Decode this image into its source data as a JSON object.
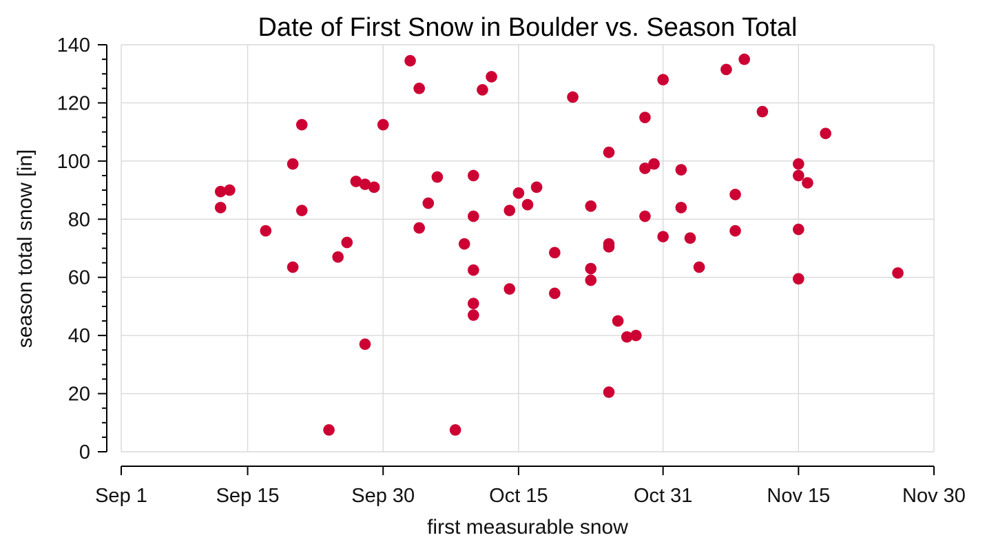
{
  "chart_data": {
    "type": "scatter",
    "title": "Date of First Snow in Boulder vs. Season Total",
    "xlabel": "first measurable snow",
    "ylabel": "season total snow [in]",
    "x_is_date": true,
    "xlim": [
      "Sep 1",
      "Nov 30"
    ],
    "ylim": [
      0,
      140
    ],
    "x_ticks": [
      {
        "value": "Sep 1",
        "label": "Sep 1"
      },
      {
        "value": "Sep 15",
        "label": "Sep 15"
      },
      {
        "value": "Sep 30",
        "label": "Sep 30"
      },
      {
        "value": "Oct 15",
        "label": "Oct 15"
      },
      {
        "value": "Oct 31",
        "label": "Oct 31"
      },
      {
        "value": "Nov 15",
        "label": "Nov 15"
      },
      {
        "value": "Nov 30",
        "label": "Nov 30"
      }
    ],
    "y_ticks": [
      0,
      20,
      40,
      60,
      80,
      100,
      120,
      140
    ],
    "grid": true,
    "color": "#cc0033",
    "points": [
      {
        "x": "Sep 12",
        "y": 84
      },
      {
        "x": "Sep 12",
        "y": 89.5
      },
      {
        "x": "Sep 13",
        "y": 90
      },
      {
        "x": "Sep 17",
        "y": 76
      },
      {
        "x": "Sep 20",
        "y": 63.5
      },
      {
        "x": "Sep 20",
        "y": 99
      },
      {
        "x": "Sep 21",
        "y": 83
      },
      {
        "x": "Sep 21",
        "y": 112.5
      },
      {
        "x": "Sep 24",
        "y": 7.5
      },
      {
        "x": "Sep 25",
        "y": 67
      },
      {
        "x": "Sep 26",
        "y": 72
      },
      {
        "x": "Sep 27",
        "y": 93
      },
      {
        "x": "Sep 28",
        "y": 92
      },
      {
        "x": "Sep 28",
        "y": 37
      },
      {
        "x": "Sep 29",
        "y": 91
      },
      {
        "x": "Sep 30",
        "y": 112.5
      },
      {
        "x": "Oct 3",
        "y": 134.5
      },
      {
        "x": "Oct 4",
        "y": 125
      },
      {
        "x": "Oct 4",
        "y": 77
      },
      {
        "x": "Oct 5",
        "y": 85.5
      },
      {
        "x": "Oct 6",
        "y": 94.5
      },
      {
        "x": "Oct 8",
        "y": 7.5
      },
      {
        "x": "Oct 9",
        "y": 71.5
      },
      {
        "x": "Oct 10",
        "y": 95
      },
      {
        "x": "Oct 10",
        "y": 81
      },
      {
        "x": "Oct 10",
        "y": 62.5
      },
      {
        "x": "Oct 10",
        "y": 51
      },
      {
        "x": "Oct 10",
        "y": 47
      },
      {
        "x": "Oct 11",
        "y": 124.5
      },
      {
        "x": "Oct 12",
        "y": 129
      },
      {
        "x": "Oct 14",
        "y": 83
      },
      {
        "x": "Oct 14",
        "y": 56
      },
      {
        "x": "Oct 15",
        "y": 89
      },
      {
        "x": "Oct 16",
        "y": 85
      },
      {
        "x": "Oct 17",
        "y": 91
      },
      {
        "x": "Oct 19",
        "y": 68.5
      },
      {
        "x": "Oct 19",
        "y": 54.5
      },
      {
        "x": "Oct 21",
        "y": 122
      },
      {
        "x": "Oct 23",
        "y": 84.5
      },
      {
        "x": "Oct 23",
        "y": 63
      },
      {
        "x": "Oct 23",
        "y": 59
      },
      {
        "x": "Oct 25",
        "y": 103
      },
      {
        "x": "Oct 25",
        "y": 71.5
      },
      {
        "x": "Oct 25",
        "y": 70.5
      },
      {
        "x": "Oct 25",
        "y": 20.5
      },
      {
        "x": "Oct 26",
        "y": 45
      },
      {
        "x": "Oct 27",
        "y": 39.5
      },
      {
        "x": "Oct 28",
        "y": 40
      },
      {
        "x": "Oct 29",
        "y": 115
      },
      {
        "x": "Oct 29",
        "y": 97.5
      },
      {
        "x": "Oct 29",
        "y": 81
      },
      {
        "x": "Oct 30",
        "y": 99
      },
      {
        "x": "Oct 31",
        "y": 128
      },
      {
        "x": "Oct 31",
        "y": 74
      },
      {
        "x": "Nov 2",
        "y": 97
      },
      {
        "x": "Nov 2",
        "y": 84
      },
      {
        "x": "Nov 3",
        "y": 73.5
      },
      {
        "x": "Nov 4",
        "y": 63.5
      },
      {
        "x": "Nov 7",
        "y": 131.5
      },
      {
        "x": "Nov 8",
        "y": 88.5
      },
      {
        "x": "Nov 8",
        "y": 76
      },
      {
        "x": "Nov 9",
        "y": 135
      },
      {
        "x": "Nov 11",
        "y": 117
      },
      {
        "x": "Nov 15",
        "y": 99
      },
      {
        "x": "Nov 15",
        "y": 95
      },
      {
        "x": "Nov 15",
        "y": 76.5
      },
      {
        "x": "Nov 15",
        "y": 59.5
      },
      {
        "x": "Nov 16",
        "y": 92.5
      },
      {
        "x": "Nov 18",
        "y": 109.5
      },
      {
        "x": "Nov 26",
        "y": 61.5
      }
    ]
  }
}
